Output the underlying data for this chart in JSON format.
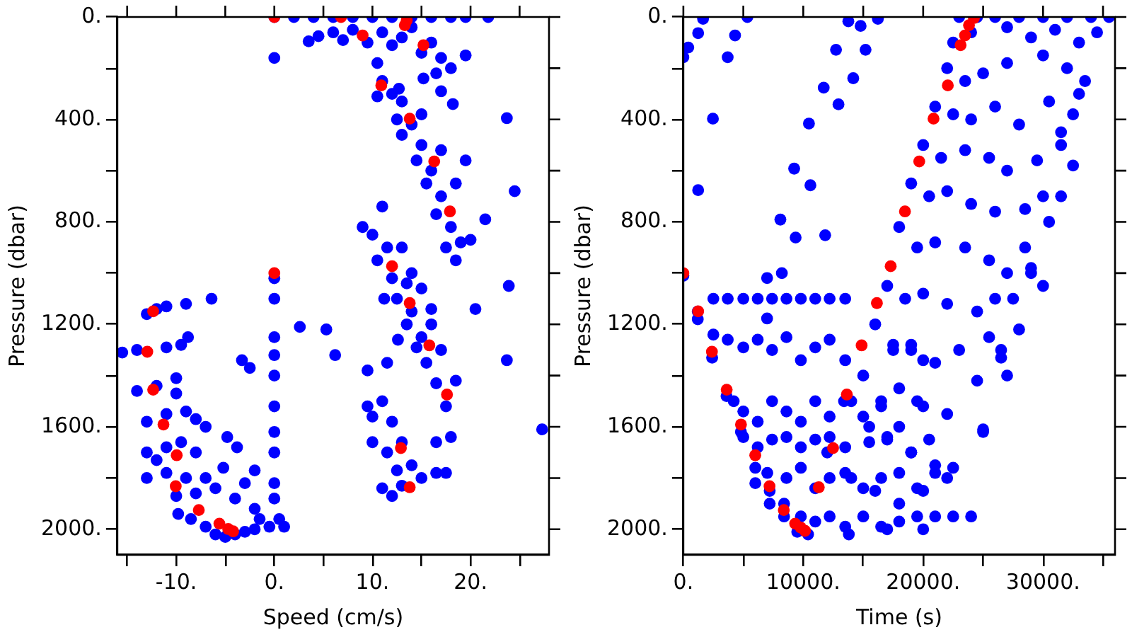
{
  "chart_data": [
    {
      "type": "scatter",
      "xlabel": "Speed (cm/s)",
      "ylabel": "Pressure (dbar)",
      "marker": "circle",
      "xlim": [
        -16,
        28
      ],
      "ylim": [
        2100,
        0
      ],
      "xticks": [
        {
          "value": -15,
          "label": null
        },
        {
          "value": -10,
          "label": "-10."
        },
        {
          "value": -5,
          "label": null
        },
        {
          "value": 0,
          "label": "0."
        },
        {
          "value": 5,
          "label": null
        },
        {
          "value": 10,
          "label": "10."
        },
        {
          "value": 15,
          "label": null
        },
        {
          "value": 20,
          "label": "20."
        },
        {
          "value": 25,
          "label": null
        }
      ],
      "yticks": [
        {
          "value": 0,
          "label": "0."
        },
        {
          "value": 200,
          "label": null
        },
        {
          "value": 400,
          "label": "400."
        },
        {
          "value": 600,
          "label": null
        },
        {
          "value": 800,
          "label": "800."
        },
        {
          "value": 1000,
          "label": null
        },
        {
          "value": 1200,
          "label": "1200."
        },
        {
          "value": 1400,
          "label": null
        },
        {
          "value": 1600,
          "label": "1600."
        },
        {
          "value": 1800,
          "label": null
        },
        {
          "value": 2000,
          "label": "2000."
        }
      ],
      "series": [
        {
          "color": "#0000ff",
          "x": [
            0,
            2,
            4,
            6,
            8,
            10,
            12,
            14,
            16,
            18,
            19.5,
            21.8,
            3.5,
            4.5,
            6,
            7,
            8,
            9.5,
            11,
            12,
            13,
            14,
            15,
            16,
            17,
            18,
            16.5,
            19.5,
            0,
            10.5,
            11,
            12,
            10.5,
            13,
            12.5,
            14,
            15,
            13,
            15,
            14.5,
            16,
            17,
            15.5,
            17,
            18.5,
            16.5,
            18,
            19,
            17.5,
            18.5,
            20,
            19.5,
            18.2,
            17,
            15.2,
            12.7,
            20.5,
            23.7,
            24.5,
            21.5,
            9,
            10,
            11,
            11.5,
            10.5,
            12,
            13,
            14,
            12.5,
            14,
            15,
            13.5,
            15,
            16,
            15.5,
            17,
            16.5,
            17.5,
            18.5,
            14.5,
            16,
            13.5,
            11.2,
            12.6,
            23.9,
            23.7,
            27.3,
            9.5,
            9.5,
            10,
            11,
            11.5,
            12,
            10,
            11.5,
            13,
            14,
            16.5,
            18,
            11,
            12,
            13,
            15,
            16.5,
            17.5,
            12.5,
            0,
            0,
            0,
            0,
            0,
            0,
            0,
            0,
            0,
            0,
            2.6,
            5.3,
            6.2,
            -6.4,
            -2.5,
            -3.3,
            -3.8,
            -4.8,
            -2,
            -3,
            -5.2,
            -4,
            -2,
            -1.5,
            -0.5,
            1,
            0.5,
            -13,
            -11,
            -9,
            -12,
            -15.5,
            -14,
            -11,
            -9.5,
            -8.8,
            -14,
            -12,
            -10,
            -10,
            -13,
            -11,
            -9,
            -8,
            -7,
            -13,
            -12,
            -11,
            -9.5,
            -8,
            -13,
            -11,
            -9,
            -7,
            -6,
            -8,
            -10,
            -9.8,
            -8.5,
            -7,
            -6,
            -5,
            -4,
            -3,
            -2
          ],
          "values": [
            0,
            0,
            0,
            0,
            0,
            0,
            0,
            0,
            0,
            0,
            0,
            0,
            95,
            75,
            60,
            90,
            50,
            100,
            60,
            110,
            80,
            40,
            140,
            100,
            160,
            200,
            220,
            150,
            160,
            180,
            250,
            300,
            310,
            330,
            400,
            420,
            380,
            460,
            500,
            560,
            600,
            520,
            650,
            700,
            650,
            770,
            820,
            880,
            900,
            950,
            870,
            560,
            340,
            290,
            240,
            280,
            1140,
            395,
            680,
            790,
            820,
            850,
            740,
            900,
            950,
            1020,
            900,
            1000,
            1100,
            1150,
            1060,
            1200,
            1250,
            1200,
            1350,
            1300,
            1430,
            1520,
            1420,
            1290,
            1140,
            1040,
            1100,
            1260,
            1050,
            1340,
            1610,
            1380,
            1520,
            1560,
            1500,
            1350,
            1580,
            1660,
            1700,
            1660,
            1750,
            1660,
            1640,
            1840,
            1870,
            1830,
            1800,
            1780,
            1780,
            1770,
            1020,
            1100,
            1250,
            1320,
            1400,
            1520,
            1620,
            1700,
            1820,
            1880,
            1210,
            1220,
            1320,
            1100,
            1370,
            1340,
            1680,
            1640,
            1770,
            1820,
            1760,
            1880,
            1920,
            1960,
            1990,
            1990,
            1960,
            1160,
            1130,
            1120,
            1140,
            1310,
            1300,
            1290,
            1280,
            1250,
            1460,
            1440,
            1410,
            1470,
            1580,
            1550,
            1540,
            1570,
            1600,
            1700,
            1730,
            1680,
            1660,
            1700,
            1800,
            1780,
            1800,
            1800,
            1840,
            1860,
            1870,
            1940,
            1960,
            1990,
            2020,
            2030,
            2020,
            2010,
            2000
          ]
        },
        {
          "color": "#ff0000",
          "x": [
            0,
            6.8,
            13.3,
            13.5,
            9,
            15.2,
            10.9,
            13.8,
            16.3,
            17.9,
            0,
            12,
            13.8,
            15.8,
            17.6,
            12.9,
            13.8,
            -12.35,
            -12.95,
            -12.35,
            -11.3,
            -9.95,
            -10.05,
            -7.7,
            -5.6,
            -4.7,
            -4.2
          ],
          "values": [
            0,
            0,
            32,
            13,
            72,
            110,
            267,
            397,
            564,
            759,
            1000,
            973,
            1117,
            1282,
            1474,
            1683,
            1836,
            1149,
            1307,
            1455,
            1591,
            1711,
            1832,
            1925,
            1978,
            1999,
            2008
          ]
        }
      ]
    },
    {
      "type": "scatter",
      "xlabel": "Time (s)",
      "ylabel": "Pressure (dbar)",
      "marker": "circle",
      "xlim": [
        0,
        36000
      ],
      "ylim": [
        2100,
        0
      ],
      "xticks": [
        {
          "value": 0,
          "label": "0."
        },
        {
          "value": 5000,
          "label": null
        },
        {
          "value": 10000,
          "label": "10000."
        },
        {
          "value": 15000,
          "label": null
        },
        {
          "value": 20000,
          "label": "20000."
        },
        {
          "value": 25000,
          "label": null
        },
        {
          "value": 30000,
          "label": "30000."
        },
        {
          "value": 35000,
          "label": null
        }
      ],
      "yticks": [
        {
          "value": 0,
          "label": "0."
        },
        {
          "value": 200,
          "label": null
        },
        {
          "value": 400,
          "label": "400."
        },
        {
          "value": 600,
          "label": null
        },
        {
          "value": 800,
          "label": "800."
        },
        {
          "value": 1000,
          "label": null
        },
        {
          "value": 1200,
          "label": "1200."
        },
        {
          "value": 1400,
          "label": null
        },
        {
          "value": 1600,
          "label": "1600."
        },
        {
          "value": 1800,
          "label": null
        },
        {
          "value": 2000,
          "label": "2000."
        }
      ],
      "series": [
        {
          "color": "#0000ff",
          "x": [
            0,
            410,
            1232,
            1643,
            3696,
            4312,
            5339,
            2464,
            1232,
            13759,
            12731,
            14167,
            14784,
            15195,
            16222,
            11705,
            12937,
            11828,
            6982,
            8214,
            6982,
            10473,
            10596,
            9241,
            8091,
            9364,
            23000,
            24500,
            26000,
            28000,
            30000,
            32000,
            34000,
            35500,
            22500,
            24000,
            27000,
            29000,
            31000,
            33000,
            34500,
            22000,
            23500,
            25000,
            27000,
            30000,
            32000,
            33500,
            21000,
            22500,
            24000,
            26000,
            28000,
            30500,
            32500,
            20000,
            21500,
            23500,
            25500,
            27000,
            29500,
            31500,
            19000,
            20500,
            22000,
            24000,
            26000,
            28500,
            30000,
            18000,
            19500,
            21000,
            23500,
            25500,
            27000,
            29000,
            17000,
            18500,
            20000,
            22000,
            24500,
            26000,
            28000,
            16000,
            17500,
            19000,
            21000,
            23000,
            24500,
            26500,
            15000,
            16500,
            18000,
            20000,
            22000,
            25000,
            14000,
            15500,
            17000,
            19000,
            21000,
            12000,
            14000,
            16000,
            18000,
            20000,
            22000,
            2500,
            3700,
            5000,
            6200,
            7400,
            8600,
            9800,
            11000,
            12200,
            13500,
            2500,
            3700,
            5000,
            6200,
            7400,
            8600,
            9800,
            11000,
            12200,
            13500,
            17500,
            19000,
            20000,
            4200,
            5000,
            6200,
            7400,
            8600,
            9800,
            11000,
            12200,
            13400,
            15000,
            16500,
            18000,
            19500,
            5000,
            6200,
            7400,
            8600,
            9800,
            11000,
            12200,
            13500,
            15500,
            17000,
            19000,
            20500,
            7000,
            8600,
            9800,
            11000,
            12200,
            13500,
            15000,
            16500,
            18000,
            19500,
            21000,
            22500,
            9800,
            11000,
            12200,
            13500,
            15000,
            16500,
            18000,
            19500,
            21000,
            22500,
            24000,
            13800,
            10400,
            17000,
            20000,
            1200,
            1200,
            2400,
            3600,
            4800,
            6000,
            6000,
            7200,
            7200,
            8400,
            8400,
            9500,
            0,
            33000,
            31500,
            32500,
            30500,
            29000,
            27500,
            26500,
            25000,
            28500,
            30000,
            31500,
            27000,
            25500
          ],
          "values": [
            157,
            119,
            63,
            7,
            157,
            72,
            0,
            397,
            676,
            17,
            128,
            239,
            35,
            128,
            7,
            276,
            341,
            852,
            1019,
            1000,
            1177,
            416,
            657,
            592,
            791,
            861,
            0,
            0,
            0,
            0,
            0,
            0,
            0,
            0,
            100,
            60,
            40,
            80,
            50,
            100,
            60,
            200,
            250,
            220,
            180,
            150,
            200,
            250,
            350,
            380,
            400,
            350,
            420,
            330,
            380,
            500,
            550,
            520,
            550,
            600,
            560,
            500,
            650,
            700,
            680,
            730,
            760,
            750,
            700,
            820,
            900,
            880,
            900,
            950,
            1000,
            980,
            1050,
            1100,
            1080,
            1120,
            1150,
            1100,
            1220,
            1200,
            1300,
            1280,
            1350,
            1300,
            1420,
            1330,
            1400,
            1500,
            1450,
            1520,
            1550,
            1610,
            1500,
            1600,
            1650,
            1700,
            1750,
            1700,
            1800,
            1850,
            1900,
            1850,
            1800,
            1100,
            1100,
            1100,
            1100,
            1100,
            1100,
            1100,
            1100,
            1100,
            1100,
            1240,
            1260,
            1290,
            1260,
            1300,
            1250,
            1340,
            1290,
            1260,
            1340,
            1280,
            1300,
            1340,
            1500,
            1540,
            1580,
            1500,
            1540,
            1580,
            1500,
            1560,
            1500,
            1560,
            1520,
            1600,
            1500,
            1640,
            1680,
            1650,
            1640,
            1680,
            1650,
            1640,
            1680,
            1660,
            1640,
            1700,
            1650,
            1780,
            1800,
            1760,
            1840,
            1800,
            1780,
            1840,
            1800,
            1780,
            1840,
            1780,
            1760,
            1950,
            1970,
            1950,
            1990,
            1950,
            1990,
            1970,
            1950,
            1950,
            1950,
            1950,
            2020,
            2020,
            2000,
            2000,
            1150,
            1180,
            1330,
            1480,
            1620,
            1760,
            1820,
            1850,
            1900,
            1950,
            1900,
            2010,
            1010,
            300,
            450,
            580,
            800,
            1000,
            1100,
            1300,
            1620,
            900,
            1050,
            700,
            1400,
            1250
          ]
        },
        {
          "color": "#ff0000",
          "x": [
            0,
            1232,
            2382,
            3614,
            4805,
            5996,
            7187,
            8378,
            9323,
            9775,
            10144,
            11294,
            12485,
            13635,
            14867,
            16140,
            17290,
            18482,
            19673,
            20864,
            22054,
            23122,
            23492,
            23821,
            24025,
            24231
          ],
          "values": [
            1000,
            1149,
            1307,
            1455,
            1591,
            1711,
            1832,
            1925,
            1978,
            1993,
            2006,
            1836,
            1683,
            1474,
            1282,
            1117,
            973,
            759,
            564,
            397,
            267,
            110,
            72,
            32,
            null,
            4
          ]
        }
      ]
    }
  ]
}
